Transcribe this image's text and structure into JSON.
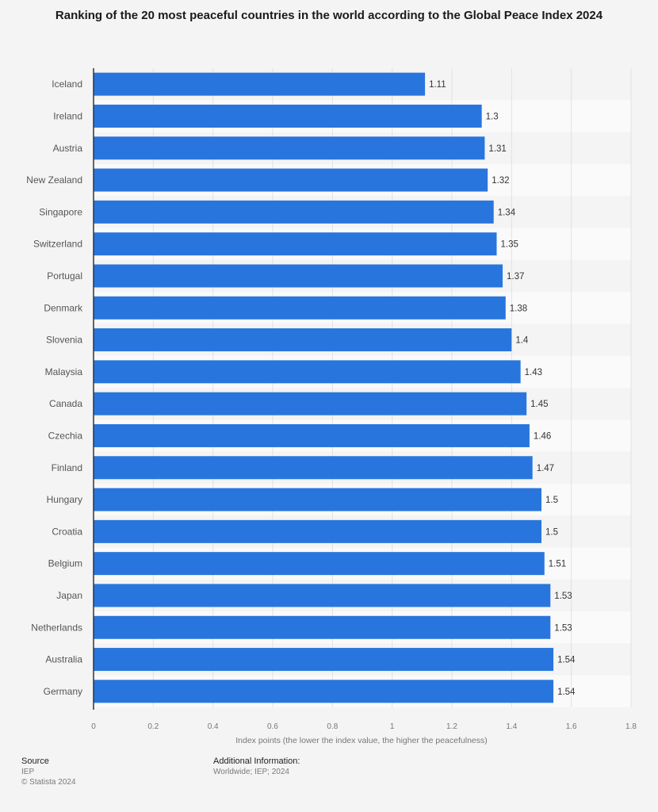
{
  "chart_data": {
    "type": "bar",
    "orientation": "horizontal",
    "title": "Ranking of the 20 most peaceful countries in the world according to the Global Peace Index 2024",
    "categories": [
      "Iceland",
      "Ireland",
      "Austria",
      "New Zealand",
      "Singapore",
      "Switzerland",
      "Portugal",
      "Denmark",
      "Slovenia",
      "Malaysia",
      "Canada",
      "Czechia",
      "Finland",
      "Hungary",
      "Croatia",
      "Belgium",
      "Japan",
      "Netherlands",
      "Australia",
      "Germany"
    ],
    "values": [
      1.11,
      1.3,
      1.31,
      1.32,
      1.34,
      1.35,
      1.37,
      1.38,
      1.4,
      1.43,
      1.45,
      1.46,
      1.47,
      1.5,
      1.5,
      1.51,
      1.53,
      1.53,
      1.54,
      1.54
    ],
    "value_labels": [
      "1.11",
      "1.3",
      "1.31",
      "1.32",
      "1.34",
      "1.35",
      "1.37",
      "1.38",
      "1.4",
      "1.43",
      "1.45",
      "1.46",
      "1.47",
      "1.5",
      "1.5",
      "1.51",
      "1.53",
      "1.53",
      "1.54",
      "1.54"
    ],
    "xlabel": "Index points (the lower the index value, the higher the peacefulness)",
    "ylabel": "",
    "xlim": [
      0,
      1.8
    ],
    "ticks": [
      0,
      0.2,
      0.4,
      0.6,
      0.8,
      1,
      1.2,
      1.4,
      1.6,
      1.8
    ],
    "tick_labels": [
      "0",
      "0.2",
      "0.4",
      "0.6",
      "0.8",
      "1",
      "1.2",
      "1.4",
      "1.6",
      "1.8"
    ],
    "grid": true,
    "bar_color": "#2876dd"
  },
  "footer": {
    "source_label": "Source",
    "source_value": "IEP",
    "copyright": "© Statista 2024",
    "additional_label": "Additional Information:",
    "additional_value": "Worldwide; IEP; 2024"
  }
}
